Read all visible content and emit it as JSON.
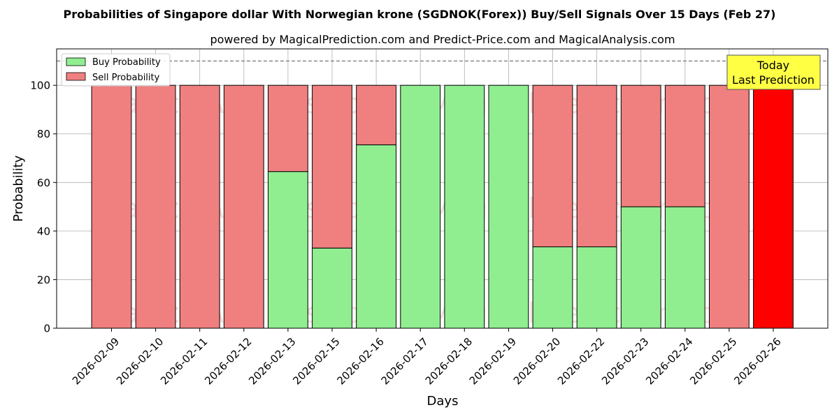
{
  "chart_data": {
    "type": "bar",
    "stacked": true,
    "title": "Probabilities of Singapore dollar With Norwegian krone (SGDNOK(Forex)) Buy/Sell Signals Over 15 Days (Feb 27)",
    "subtitle": "powered by MagicalPrediction.com and Predict-Price.com and MagicalAnalysis.com",
    "xlabel": "Days",
    "ylabel": "Probability",
    "ylim": [
      0,
      115
    ],
    "yticks": [
      0,
      20,
      40,
      60,
      80,
      100
    ],
    "reference_line": 110,
    "grid": true,
    "legend_position": "top-left",
    "categories": [
      "2026-02-09",
      "2026-02-10",
      "2026-02-11",
      "2026-02-12",
      "2026-02-13",
      "2026-02-15",
      "2026-02-16",
      "2026-02-17",
      "2026-02-18",
      "2026-02-19",
      "2026-02-20",
      "2026-02-22",
      "2026-02-23",
      "2026-02-24",
      "2026-02-25",
      "2026-02-26"
    ],
    "series": [
      {
        "name": "Buy Probability",
        "color": "#90ee90",
        "values": [
          0,
          0,
          0,
          0,
          64.5,
          33,
          75.5,
          100,
          100,
          100,
          33.5,
          33.5,
          50,
          50,
          0,
          0
        ]
      },
      {
        "name": "Sell Probability",
        "color": "#f08080",
        "values": [
          100,
          100,
          100,
          100,
          35.5,
          67,
          24.5,
          0,
          0,
          0,
          66.5,
          66.5,
          50,
          50,
          100,
          100
        ]
      }
    ],
    "highlight": {
      "index": 15,
      "color": "#ff0000"
    },
    "annotation": {
      "lines": [
        "Today",
        "Last Prediction"
      ],
      "background": "#ffff44"
    },
    "watermarks": [
      "MagicalAnalysis.com",
      "MagicalPrediction.com"
    ]
  }
}
